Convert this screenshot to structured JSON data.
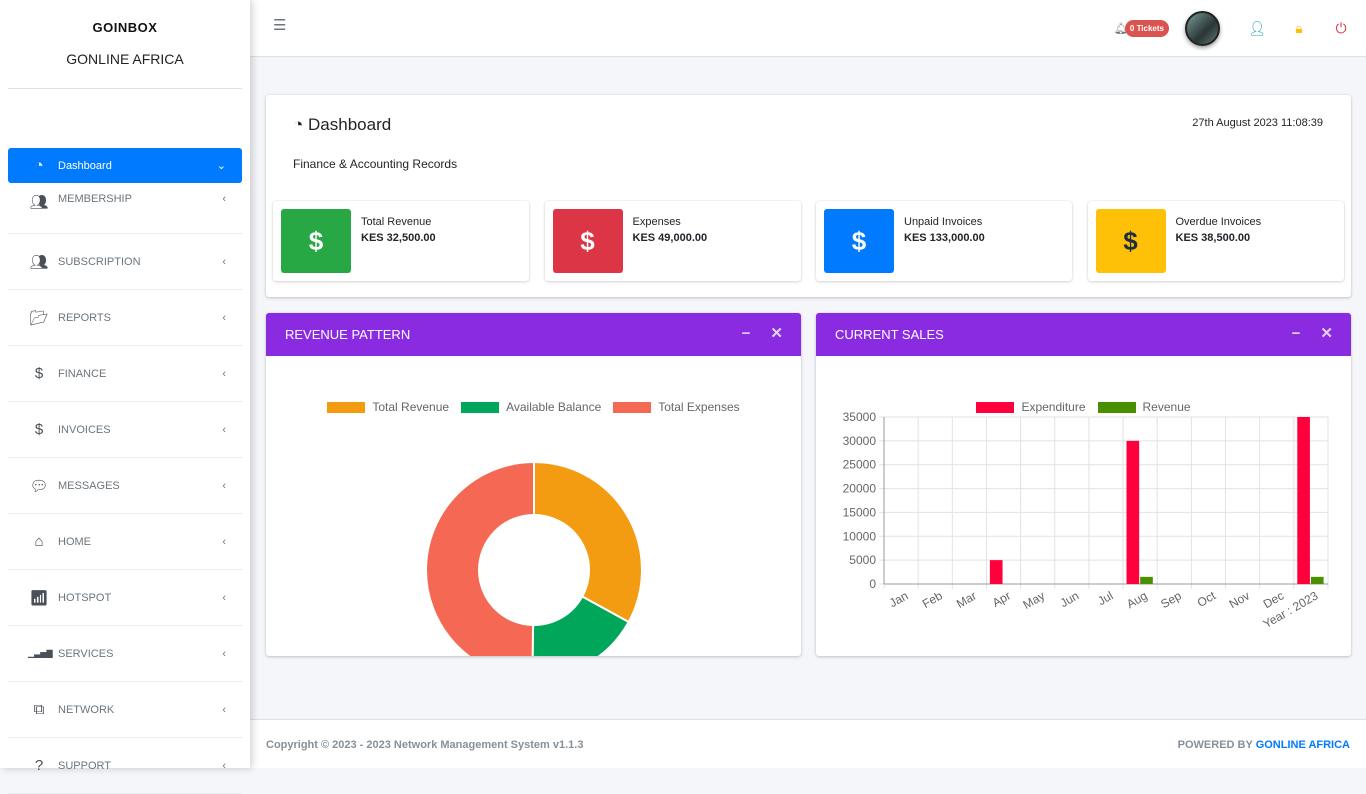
{
  "sidebar": {
    "logo": "GOINBOX",
    "brand": "GONLINE AFRICA",
    "items": [
      {
        "label": "Dashboard",
        "icon": "tachometer-icon"
      },
      {
        "label": "MEMBERSHIP",
        "icon": "users-icon"
      },
      {
        "label": "SUBSCRIPTION",
        "icon": "users-icon"
      },
      {
        "label": "REPORTS",
        "icon": "folder-open-icon"
      },
      {
        "label": "FINANCE",
        "icon": "hand-dollar-icon"
      },
      {
        "label": "INVOICES",
        "icon": "hand-dollar-icon"
      },
      {
        "label": "MESSAGES",
        "icon": "sms-icon"
      },
      {
        "label": "HOME",
        "icon": "home-icon"
      },
      {
        "label": "HOTSPOT",
        "icon": "wifi-icon"
      },
      {
        "label": "SERVICES",
        "icon": "signal-icon"
      },
      {
        "label": "NETWORK",
        "icon": "network-icon"
      },
      {
        "label": "SUPPORT",
        "icon": "question-circle-icon"
      }
    ]
  },
  "header": {
    "tickets": "0 Tickets"
  },
  "page": {
    "title": "Dashboard",
    "datetime": "27th August 2023 11:08:39",
    "subtitle": "Finance & Accounting Records"
  },
  "stats": [
    {
      "label": "Total Revenue",
      "value": "KES 32,500.00",
      "color": "#28a745"
    },
    {
      "label": "Expenses",
      "value": "KES 49,000.00",
      "color": "#dc3545"
    },
    {
      "label": "Unpaid Invoices",
      "value": "KES 133,000.00",
      "color": "#007bff"
    },
    {
      "label": "Overdue Invoices",
      "value": "KES 38,500.00",
      "color": "#ffc107"
    }
  ],
  "panels": {
    "revenue": "REVENUE PATTERN",
    "sales": "CURRENT SALES",
    "minimize": "−",
    "close": "✕"
  },
  "chart_data": [
    {
      "type": "pie",
      "title": "REVENUE PATTERN",
      "labels": [
        "Total Revenue",
        "Available Balance",
        "Total Expenses"
      ],
      "values": [
        32500,
        17000,
        49000
      ],
      "colors": [
        "#f39c12",
        "#00a65a",
        "#f56954"
      ],
      "legend": "top"
    },
    {
      "type": "bar",
      "title": "CURRENT SALES",
      "categories": [
        "Jan",
        "Feb",
        "Mar",
        "Apr",
        "May",
        "Jun",
        "Jul",
        "Aug",
        "Sep",
        "Oct",
        "Nov",
        "Dec",
        "Year : 2023"
      ],
      "series": [
        {
          "name": "Expenditure",
          "color": "#ff003c",
          "values": [
            0,
            0,
            0,
            5000,
            0,
            0,
            0,
            30000,
            0,
            0,
            0,
            0,
            35000
          ]
        },
        {
          "name": "Revenue",
          "color": "#4a8f00",
          "values": [
            0,
            0,
            0,
            0,
            0,
            0,
            0,
            1500,
            0,
            0,
            0,
            0,
            1500
          ]
        }
      ],
      "ylim": [
        0,
        35000
      ],
      "yticks": [
        "35000",
        "30000",
        "25000",
        "20000",
        "15000",
        "10000",
        "5000",
        "0"
      ],
      "grid": true,
      "legend": "top"
    }
  ],
  "footer": {
    "copyright": "Copyright © 2023 - 2023 Network Management System v1.1.3",
    "powered": "POWERED BY",
    "company": "GONLINE AFRICA"
  }
}
